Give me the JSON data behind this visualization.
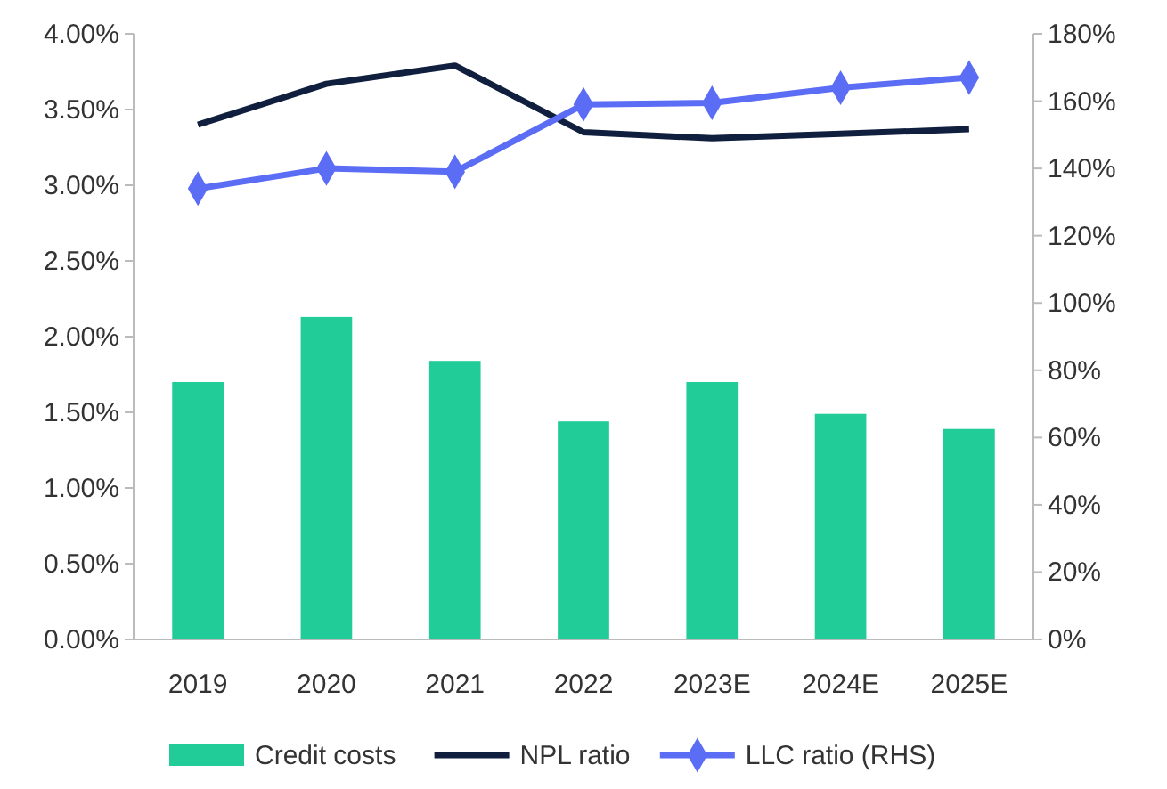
{
  "chart_data": {
    "type": "bar",
    "categories": [
      "2019",
      "2020",
      "2021",
      "2022",
      "2023E",
      "2024E",
      "2025E"
    ],
    "series": [
      {
        "name": "Credit costs",
        "color": "#22cc99",
        "values": [
          1.7,
          2.13,
          1.84,
          1.44,
          1.7,
          1.49,
          1.39
        ]
      },
      {
        "name": "NPL ratio",
        "type": "line",
        "color": "#0f1f3d",
        "marker": "none",
        "values": [
          3.4,
          3.67,
          3.79,
          3.35,
          3.31,
          3.34,
          3.37
        ]
      },
      {
        "name": "LLC ratio (RHS)",
        "type": "line",
        "axis": "y2",
        "color": "#5b6cf5",
        "marker": "diamond",
        "values": [
          134,
          140,
          139,
          159,
          159.5,
          164,
          167
        ]
      }
    ],
    "ylim": [
      0,
      4
    ],
    "yticks": [
      {
        "value": 0,
        "label": "0.00%"
      },
      {
        "value": 0.5,
        "label": "0.50%"
      },
      {
        "value": 1,
        "label": "1.00%"
      },
      {
        "value": 1.5,
        "label": "1.50%"
      },
      {
        "value": 2,
        "label": "2.00%"
      },
      {
        "value": 2.5,
        "label": "2.50%"
      },
      {
        "value": 3,
        "label": "3.00%"
      },
      {
        "value": 3.5,
        "label": "3.50%"
      },
      {
        "value": 4,
        "label": "4.00%"
      }
    ],
    "y2lim": [
      0,
      180
    ],
    "y2ticks": [
      {
        "value": 0,
        "label": "0%"
      },
      {
        "value": 20,
        "label": "20%"
      },
      {
        "value": 40,
        "label": "40%"
      },
      {
        "value": 60,
        "label": "60%"
      },
      {
        "value": 80,
        "label": "80%"
      },
      {
        "value": 100,
        "label": "100%"
      },
      {
        "value": 120,
        "label": "120%"
      },
      {
        "value": 140,
        "label": "140%"
      },
      {
        "value": 160,
        "label": "160%"
      },
      {
        "value": 180,
        "label": "180%"
      }
    ],
    "grid": false,
    "legend": "bottom"
  }
}
